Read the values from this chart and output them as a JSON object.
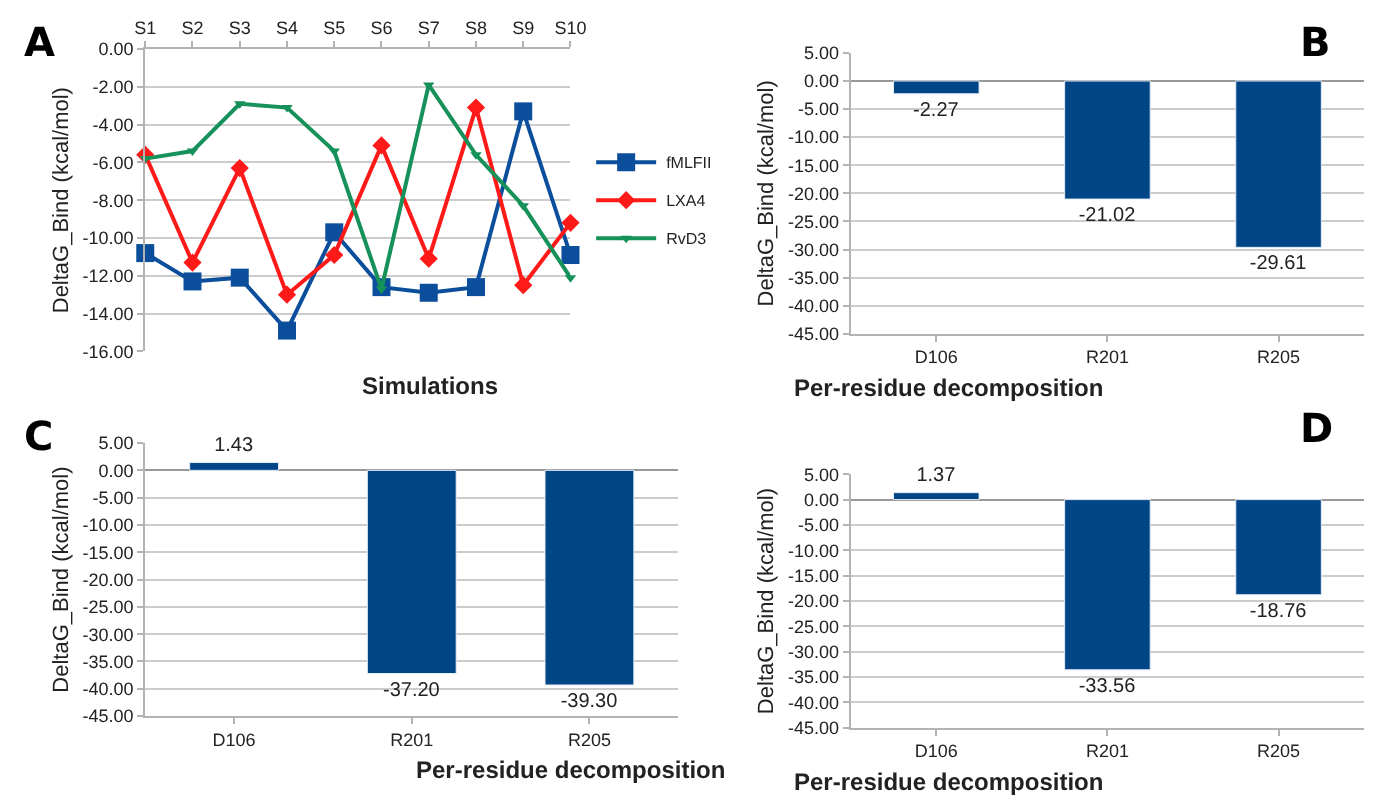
{
  "chart_data": [
    {
      "type": "line",
      "xlabel": "Simulations",
      "ylabel": "DeltaG_Bind (kcal/mol)",
      "annotations": [
        "A"
      ],
      "categories": [
        "S1",
        "S2",
        "S3",
        "S4",
        "S5",
        "S6",
        "S7",
        "S8",
        "S9",
        "S10"
      ],
      "series": [
        {
          "name": "fMLFII",
          "color": "#0b4f9c",
          "marker": "square",
          "values": [
            -10.8,
            -12.3,
            -12.1,
            -14.9,
            -9.7,
            -12.6,
            -12.9,
            -12.6,
            -3.3,
            -10.9
          ]
        },
        {
          "name": "LXA4",
          "color": "#ff1a1a",
          "marker": "diamond",
          "values": [
            -5.6,
            -11.3,
            -6.3,
            -13.0,
            -10.9,
            -5.1,
            -11.1,
            -3.1,
            -12.5,
            -9.2
          ]
        },
        {
          "name": "RvD3",
          "color": "#17915a",
          "marker": "triangle",
          "values": [
            -5.8,
            -5.4,
            -2.9,
            -3.1,
            -5.4,
            -12.7,
            -1.9,
            -5.6,
            -8.3,
            -12.1
          ]
        }
      ],
      "ylim": [
        -16,
        0
      ],
      "yticks": [
        {
          "value": -16,
          "label": "-16.00"
        },
        {
          "value": -14,
          "label": "-14.00"
        },
        {
          "value": -12,
          "label": "-12.00"
        },
        {
          "value": -10,
          "label": "-10.00"
        },
        {
          "value": -8,
          "label": "-8.00"
        },
        {
          "value": -6,
          "label": "-6.00"
        },
        {
          "value": -4,
          "label": "-4.00"
        },
        {
          "value": -2,
          "label": "-2.00"
        },
        {
          "value": 0,
          "label": "0.00"
        }
      ],
      "grid": "y",
      "legend": "right",
      "line_style": "solid"
    },
    {
      "type": "bar",
      "xlabel": "Per-residue decomposition",
      "ylabel": "DeltaG_Bind (kcal/mol)",
      "annotations": [
        "B"
      ],
      "categories": [
        "D106",
        "R201",
        "R205"
      ],
      "values": [
        -2.27,
        -21.02,
        -29.61
      ],
      "color": "#004586",
      "value_labels": [
        "-2.27",
        "-21.02",
        "-29.61"
      ],
      "ylim": [
        -45,
        5
      ],
      "yticks": [
        {
          "value": -45,
          "label": "-45.00"
        },
        {
          "value": -40,
          "label": "-40.00"
        },
        {
          "value": -35,
          "label": "-35.00"
        },
        {
          "value": -30,
          "label": "-30.00"
        },
        {
          "value": -25,
          "label": "-25.00"
        },
        {
          "value": -20,
          "label": "-20.00"
        },
        {
          "value": -15,
          "label": "-15.00"
        },
        {
          "value": -10,
          "label": "-10.00"
        },
        {
          "value": -5,
          "label": "-5.00"
        },
        {
          "value": 0,
          "label": "0.00"
        },
        {
          "value": 5,
          "label": "5.00"
        }
      ],
      "grid": "y"
    },
    {
      "type": "bar",
      "xlabel": "Per-residue decomposition",
      "ylabel": "DeltaG_Bind (kcal/mol)",
      "annotations": [
        "C"
      ],
      "categories": [
        "D106",
        "R201",
        "R205"
      ],
      "values": [
        1.43,
        -37.2,
        -39.3
      ],
      "color": "#004586",
      "value_labels": [
        "1.43",
        "-37.20",
        "-39.30"
      ],
      "ylim": [
        -45,
        5
      ],
      "yticks": [
        {
          "value": -45,
          "label": "-45.00"
        },
        {
          "value": -40,
          "label": "-40.00"
        },
        {
          "value": -35,
          "label": "-35.00"
        },
        {
          "value": -30,
          "label": "-30.00"
        },
        {
          "value": -25,
          "label": "-25.00"
        },
        {
          "value": -20,
          "label": "-20.00"
        },
        {
          "value": -15,
          "label": "-15.00"
        },
        {
          "value": -10,
          "label": "-10.00"
        },
        {
          "value": -5,
          "label": "-5.00"
        },
        {
          "value": 0,
          "label": "0.00"
        },
        {
          "value": 5,
          "label": "5.00"
        }
      ],
      "grid": "y"
    },
    {
      "type": "bar",
      "xlabel": "Per-residue decomposition",
      "ylabel": "DeltaG_Bind (kcal/mol)",
      "annotations": [
        "D"
      ],
      "categories": [
        "D106",
        "R201",
        "R205"
      ],
      "values": [
        1.37,
        -33.56,
        -18.76
      ],
      "color": "#004586",
      "value_labels": [
        "1.37",
        "-33.56",
        "-18.76"
      ],
      "ylim": [
        -45,
        5
      ],
      "yticks": [
        {
          "value": -45,
          "label": "-45.00"
        },
        {
          "value": -40,
          "label": "-40.00"
        },
        {
          "value": -35,
          "label": "-35.00"
        },
        {
          "value": -30,
          "label": "-30.00"
        },
        {
          "value": -25,
          "label": "-25.00"
        },
        {
          "value": -20,
          "label": "-20.00"
        },
        {
          "value": -15,
          "label": "-15.00"
        },
        {
          "value": -10,
          "label": "-10.00"
        },
        {
          "value": -5,
          "label": "-5.00"
        },
        {
          "value": 0,
          "label": "0.00"
        },
        {
          "value": 5,
          "label": "5.00"
        }
      ],
      "grid": "y"
    }
  ]
}
